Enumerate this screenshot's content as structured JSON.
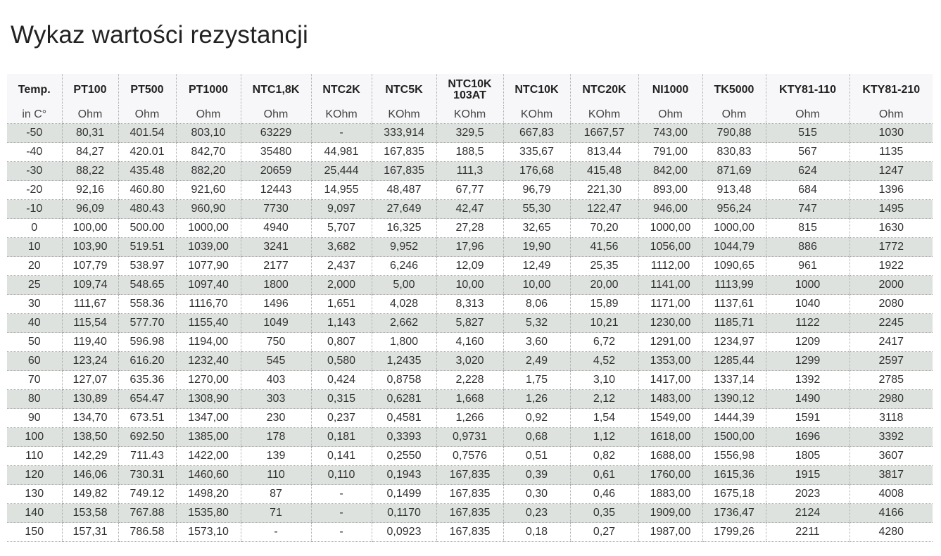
{
  "title": "Wykaz wartości rezystancji",
  "table": {
    "headers": [
      "Temp.",
      "PT100",
      "PT500",
      "PT1000",
      "NTC1,8K",
      "NTC2K",
      "NTC5K",
      "NTC10K\n103AT",
      "NTC10K",
      "NTC20K",
      "NI1000",
      "TK5000",
      "KTY81-110",
      "KTY81-210"
    ],
    "units": [
      "in C°",
      "Ohm",
      "Ohm",
      "Ohm",
      "Ohm",
      "KOhm",
      "KOhm",
      "KOhm",
      "KOhm",
      "KOhm",
      "Ohm",
      "Ohm",
      "Ohm",
      "Ohm"
    ],
    "rows": [
      [
        "-50",
        "80,31",
        "401.54",
        "803,10",
        "63229",
        "-",
        "333,914",
        "329,5",
        "667,83",
        "1667,57",
        "743,00",
        "790,88",
        "515",
        "1030"
      ],
      [
        "-40",
        "84,27",
        "420.01",
        "842,70",
        "35480",
        "44,981",
        "167,835",
        "188,5",
        "335,67",
        "813,44",
        "791,00",
        "830,83",
        "567",
        "1135"
      ],
      [
        "-30",
        "88,22",
        "435.48",
        "882,20",
        "20659",
        "25,444",
        "167,835",
        "111,3",
        "176,68",
        "415,48",
        "842,00",
        "871,69",
        "624",
        "1247"
      ],
      [
        "-20",
        "92,16",
        "460.80",
        "921,60",
        "12443",
        "14,955",
        "48,487",
        "67,77",
        "96,79",
        "221,30",
        "893,00",
        "913,48",
        "684",
        "1396"
      ],
      [
        "-10",
        "96,09",
        "480.43",
        "960,90",
        "7730",
        "9,097",
        "27,649",
        "42,47",
        "55,30",
        "122,47",
        "946,00",
        "956,24",
        "747",
        "1495"
      ],
      [
        "0",
        "100,00",
        "500.00",
        "1000,00",
        "4940",
        "5,707",
        "16,325",
        "27,28",
        "32,65",
        "70,20",
        "1000,00",
        "1000,00",
        "815",
        "1630"
      ],
      [
        "10",
        "103,90",
        "519.51",
        "1039,00",
        "3241",
        "3,682",
        "9,952",
        "17,96",
        "19,90",
        "41,56",
        "1056,00",
        "1044,79",
        "886",
        "1772"
      ],
      [
        "20",
        "107,79",
        "538.97",
        "1077,90",
        "2177",
        "2,437",
        "6,246",
        "12,09",
        "12,49",
        "25,35",
        "1112,00",
        "1090,65",
        "961",
        "1922"
      ],
      [
        "25",
        "109,74",
        "548.65",
        "1097,40",
        "1800",
        "2,000",
        "5,00",
        "10,00",
        "10,00",
        "20,00",
        "1141,00",
        "1113,99",
        "1000",
        "2000"
      ],
      [
        "30",
        "111,67",
        "558.36",
        "1116,70",
        "1496",
        "1,651",
        "4,028",
        "8,313",
        "8,06",
        "15,89",
        "1171,00",
        "1137,61",
        "1040",
        "2080"
      ],
      [
        "40",
        "115,54",
        "577.70",
        "1155,40",
        "1049",
        "1,143",
        "2,662",
        "5,827",
        "5,32",
        "10,21",
        "1230,00",
        "1185,71",
        "1122",
        "2245"
      ],
      [
        "50",
        "119,40",
        "596.98",
        "1194,00",
        "750",
        "0,807",
        "1,800",
        "4,160",
        "3,60",
        "6,72",
        "1291,00",
        "1234,97",
        "1209",
        "2417"
      ],
      [
        "60",
        "123,24",
        "616.20",
        "1232,40",
        "545",
        "0,580",
        "1,2435",
        "3,020",
        "2,49",
        "4,52",
        "1353,00",
        "1285,44",
        "1299",
        "2597"
      ],
      [
        "70",
        "127,07",
        "635.36",
        "1270,00",
        "403",
        "0,424",
        "0,8758",
        "2,228",
        "1,75",
        "3,10",
        "1417,00",
        "1337,14",
        "1392",
        "2785"
      ],
      [
        "80",
        "130,89",
        "654.47",
        "1308,90",
        "303",
        "0,315",
        "0,6281",
        "1,668",
        "1,26",
        "2,12",
        "1483,00",
        "1390,12",
        "1490",
        "2980"
      ],
      [
        "90",
        "134,70",
        "673.51",
        "1347,00",
        "230",
        "0,237",
        "0,4581",
        "1,266",
        "0,92",
        "1,54",
        "1549,00",
        "1444,39",
        "1591",
        "3118"
      ],
      [
        "100",
        "138,50",
        "692.50",
        "1385,00",
        "178",
        "0,181",
        "0,3393",
        "0,9731",
        "0,68",
        "1,12",
        "1618,00",
        "1500,00",
        "1696",
        "3392"
      ],
      [
        "110",
        "142,29",
        "711.43",
        "1422,00",
        "139",
        "0,141",
        "0,2550",
        "0,7576",
        "0,51",
        "0,82",
        "1688,00",
        "1556,98",
        "1805",
        "3607"
      ],
      [
        "120",
        "146,06",
        "730.31",
        "1460,60",
        "110",
        "0,110",
        "0,1943",
        "167,835",
        "0,39",
        "0,61",
        "1760,00",
        "1615,36",
        "1915",
        "3817"
      ],
      [
        "130",
        "149,82",
        "749.12",
        "1498,20",
        "87",
        "-",
        "0,1499",
        "167,835",
        "0,30",
        "0,46",
        "1883,00",
        "1675,18",
        "2023",
        "4008"
      ],
      [
        "140",
        "153,58",
        "767.88",
        "1535,80",
        "71",
        "-",
        "0,1170",
        "167,835",
        "0,23",
        "0,35",
        "1909,00",
        "1736,47",
        "2124",
        "4166"
      ],
      [
        "150",
        "157,31",
        "786.58",
        "1573,10",
        "-",
        "-",
        "0,0923",
        "167,835",
        "0,18",
        "0,27",
        "1987,00",
        "1799,26",
        "2211",
        "4280"
      ]
    ]
  },
  "colors": {
    "stripe": "#dee2df",
    "header_bg": "#f7f7f9"
  }
}
